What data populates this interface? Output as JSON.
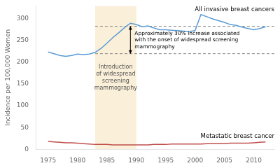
{
  "chart_data": {
    "type": "line",
    "ylabel": "Incidence per 100,000 Women",
    "xlim": [
      1973,
      2013.5
    ],
    "ylim": [
      0,
      330
    ],
    "yticks": [
      0,
      50,
      100,
      150,
      200,
      250,
      300
    ],
    "xticks": [
      1975,
      1980,
      1985,
      1990,
      1995,
      2000,
      2005,
      2010
    ],
    "grid": false,
    "x": [
      1975,
      1976,
      1977,
      1978,
      1979,
      1980,
      1981,
      1982,
      1983,
      1984,
      1985,
      1986,
      1987,
      1988,
      1989,
      1990,
      1991,
      1992,
      1993,
      1994,
      1995,
      1996,
      1997,
      1998,
      1999,
      2000,
      2001,
      2002,
      2003,
      2004,
      2005,
      2006,
      2007,
      2008,
      2009,
      2010,
      2011,
      2012
    ],
    "series": [
      {
        "name": "All invasive breast cancers",
        "color": "#5b9bd5",
        "values": [
          224,
          220,
          216,
          214,
          216,
          219,
          218,
          219,
          223,
          232,
          244,
          257,
          268,
          280,
          290,
          287,
          282,
          284,
          279,
          275,
          275,
          274,
          273,
          272,
          271,
          273,
          310,
          305,
          300,
          296,
          292,
          287,
          285,
          281,
          278,
          275,
          278,
          282
        ]
      },
      {
        "name": "Metastatic breast cancer",
        "color": "#c0504d",
        "values": [
          18,
          17,
          16,
          15,
          15,
          14,
          13,
          12,
          11,
          11,
          11,
          10,
          10,
          10,
          10,
          10,
          10,
          10,
          11,
          11,
          11,
          12,
          12,
          12,
          12,
          12,
          12,
          13,
          13,
          13,
          13,
          14,
          14,
          14,
          14,
          15,
          16,
          17
        ]
      }
    ],
    "shaded_span": {
      "start": 1983,
      "end": 1990,
      "color": "#faefd8",
      "text": "Introduction\nof widespread\nscreening\nmammography"
    },
    "reference_lines": [
      220,
      283
    ],
    "arrow": {
      "x": 1989,
      "from": 220,
      "to": 283,
      "text": "Approximately 30% increase associated\nwith the onset of widespread screening\nmammography"
    }
  }
}
